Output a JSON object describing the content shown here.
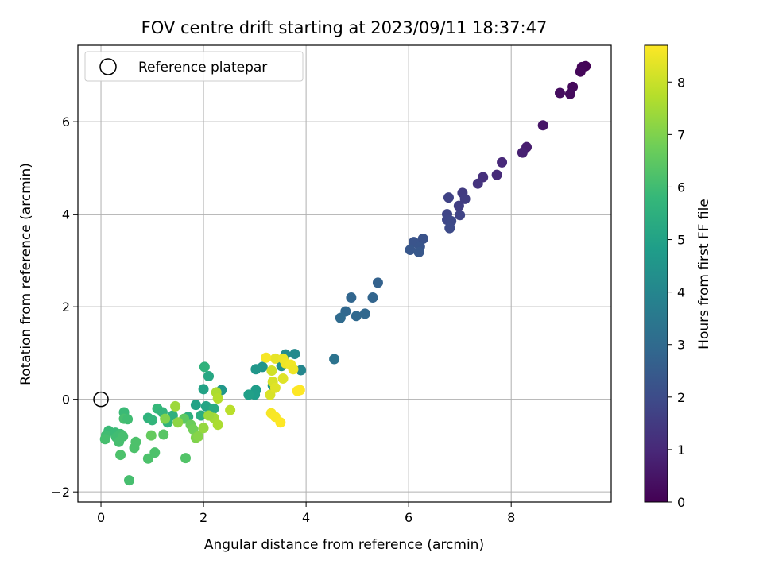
{
  "chart_data": {
    "type": "scatter",
    "title": "FOV centre drift starting at 2023/09/11 18:37:47",
    "xlabel": "Angular distance from reference (arcmin)",
    "ylabel": "Rotation from reference (arcmin)",
    "xlim": [
      -0.45,
      9.95
    ],
    "ylim": [
      -2.22,
      7.65
    ],
    "xticks": [
      0,
      2,
      4,
      6,
      8
    ],
    "xtick_labels": [
      "0",
      "2",
      "4",
      "6",
      "8"
    ],
    "yticks": [
      -2,
      0,
      2,
      4,
      6
    ],
    "ytick_labels": [
      "−2",
      "0",
      "2",
      "4",
      "6"
    ],
    "grid": true,
    "legend": {
      "placement": "top-left",
      "entries": [
        "Reference platepar"
      ]
    },
    "reference_point": {
      "x": 0,
      "y": 0,
      "label": "Reference platepar"
    },
    "colorbar": {
      "label": "Hours from first FF file",
      "range": [
        0,
        8.7
      ],
      "ticks": [
        0,
        1,
        2,
        3,
        4,
        5,
        6,
        7,
        8
      ],
      "tick_labels": [
        "0",
        "1",
        "2",
        "3",
        "4",
        "5",
        "6",
        "7",
        "8"
      ],
      "colormap": "viridis",
      "colors": [
        "#440154",
        "#482878",
        "#3e4a89",
        "#31688e",
        "#26828e",
        "#1f9e89",
        "#35b779",
        "#6ece58",
        "#b5de2b",
        "#fde725"
      ]
    },
    "points": [
      {
        "x": 9.45,
        "y": 7.2,
        "c": 0.05
      },
      {
        "x": 9.38,
        "y": 7.18,
        "c": 0.1
      },
      {
        "x": 9.35,
        "y": 7.08,
        "c": 0.15
      },
      {
        "x": 9.2,
        "y": 6.75,
        "c": 0.2
      },
      {
        "x": 9.15,
        "y": 6.6,
        "c": 0.25
      },
      {
        "x": 8.95,
        "y": 6.62,
        "c": 0.3
      },
      {
        "x": 8.62,
        "y": 5.92,
        "c": 0.5
      },
      {
        "x": 8.3,
        "y": 5.45,
        "c": 0.7
      },
      {
        "x": 8.22,
        "y": 5.33,
        "c": 0.8
      },
      {
        "x": 7.82,
        "y": 5.12,
        "c": 1.0
      },
      {
        "x": 7.72,
        "y": 4.85,
        "c": 1.05
      },
      {
        "x": 7.45,
        "y": 4.8,
        "c": 1.2
      },
      {
        "x": 7.35,
        "y": 4.66,
        "c": 1.3
      },
      {
        "x": 7.05,
        "y": 4.46,
        "c": 1.5
      },
      {
        "x": 7.1,
        "y": 4.33,
        "c": 1.55
      },
      {
        "x": 6.98,
        "y": 4.18,
        "c": 1.6
      },
      {
        "x": 6.78,
        "y": 4.36,
        "c": 1.7
      },
      {
        "x": 7.0,
        "y": 3.98,
        "c": 1.75
      },
      {
        "x": 6.75,
        "y": 4.0,
        "c": 1.8
      },
      {
        "x": 6.75,
        "y": 3.88,
        "c": 1.85
      },
      {
        "x": 6.83,
        "y": 3.85,
        "c": 1.9
      },
      {
        "x": 6.8,
        "y": 3.7,
        "c": 1.95
      },
      {
        "x": 6.28,
        "y": 3.47,
        "c": 2.2
      },
      {
        "x": 6.1,
        "y": 3.4,
        "c": 2.25
      },
      {
        "x": 6.22,
        "y": 3.3,
        "c": 2.3
      },
      {
        "x": 6.03,
        "y": 3.23,
        "c": 2.35
      },
      {
        "x": 6.2,
        "y": 3.18,
        "c": 2.4
      },
      {
        "x": 5.4,
        "y": 2.52,
        "c": 2.7
      },
      {
        "x": 5.3,
        "y": 2.2,
        "c": 2.8
      },
      {
        "x": 4.88,
        "y": 2.2,
        "c": 2.85
      },
      {
        "x": 4.77,
        "y": 1.9,
        "c": 2.9
      },
      {
        "x": 4.98,
        "y": 1.8,
        "c": 2.95
      },
      {
        "x": 5.15,
        "y": 1.85,
        "c": 2.9
      },
      {
        "x": 4.67,
        "y": 1.76,
        "c": 3.0
      },
      {
        "x": 4.55,
        "y": 0.87,
        "c": 3.3
      },
      {
        "x": 3.9,
        "y": 0.63,
        "c": 4.0
      },
      {
        "x": 3.78,
        "y": 0.98,
        "c": 4.1
      },
      {
        "x": 3.6,
        "y": 0.97,
        "c": 4.2
      },
      {
        "x": 3.52,
        "y": 0.72,
        "c": 4.4
      },
      {
        "x": 3.15,
        "y": 0.7,
        "c": 4.5
      },
      {
        "x": 3.02,
        "y": 0.65,
        "c": 4.6
      },
      {
        "x": 3.35,
        "y": 0.3,
        "c": 4.7
      },
      {
        "x": 3.02,
        "y": 0.2,
        "c": 4.8
      },
      {
        "x": 3.0,
        "y": 0.1,
        "c": 4.8
      },
      {
        "x": 2.88,
        "y": 0.1,
        "c": 4.9
      },
      {
        "x": 2.35,
        "y": 0.2,
        "c": 4.6
      },
      {
        "x": 2.02,
        "y": 0.7,
        "c": 5.6
      },
      {
        "x": 2.1,
        "y": 0.5,
        "c": 5.2
      },
      {
        "x": 2.0,
        "y": 0.22,
        "c": 5.0
      },
      {
        "x": 1.85,
        "y": -0.12,
        "c": 5.0
      },
      {
        "x": 2.05,
        "y": -0.15,
        "c": 5.1
      },
      {
        "x": 2.2,
        "y": -0.2,
        "c": 5.3
      },
      {
        "x": 1.95,
        "y": -0.35,
        "c": 5.4
      },
      {
        "x": 1.7,
        "y": -0.38,
        "c": 5.5
      },
      {
        "x": 1.4,
        "y": -0.35,
        "c": 5.5
      },
      {
        "x": 1.3,
        "y": -0.5,
        "c": 5.6
      },
      {
        "x": 1.1,
        "y": -0.2,
        "c": 5.8
      },
      {
        "x": 1.2,
        "y": -0.28,
        "c": 5.7
      },
      {
        "x": 0.92,
        "y": -0.4,
        "c": 5.6
      },
      {
        "x": 1.0,
        "y": -0.45,
        "c": 5.7
      },
      {
        "x": 0.45,
        "y": -0.28,
        "c": 5.9
      },
      {
        "x": 0.45,
        "y": -0.42,
        "c": 6.1
      },
      {
        "x": 0.52,
        "y": -0.43,
        "c": 6.0
      },
      {
        "x": 0.15,
        "y": -0.68,
        "c": 5.9
      },
      {
        "x": 0.1,
        "y": -0.78,
        "c": 6.0
      },
      {
        "x": 0.08,
        "y": -0.86,
        "c": 6.1
      },
      {
        "x": 0.28,
        "y": -0.72,
        "c": 5.9
      },
      {
        "x": 0.3,
        "y": -0.82,
        "c": 6.0
      },
      {
        "x": 0.38,
        "y": -0.75,
        "c": 6.0
      },
      {
        "x": 0.43,
        "y": -0.8,
        "c": 6.1
      },
      {
        "x": 0.35,
        "y": -0.92,
        "c": 6.1
      },
      {
        "x": 0.68,
        "y": -0.92,
        "c": 6.2
      },
      {
        "x": 0.65,
        "y": -1.05,
        "c": 6.2
      },
      {
        "x": 0.38,
        "y": -1.2,
        "c": 6.2
      },
      {
        "x": 1.05,
        "y": -1.15,
        "c": 6.2
      },
      {
        "x": 0.92,
        "y": -1.28,
        "c": 6.2
      },
      {
        "x": 0.55,
        "y": -1.75,
        "c": 6.1
      },
      {
        "x": 1.22,
        "y": -0.76,
        "c": 6.4
      },
      {
        "x": 0.98,
        "y": -0.78,
        "c": 6.6
      },
      {
        "x": 1.65,
        "y": -1.27,
        "c": 6.3
      },
      {
        "x": 1.62,
        "y": -0.42,
        "c": 6.5
      },
      {
        "x": 1.75,
        "y": -0.55,
        "c": 6.7
      },
      {
        "x": 1.8,
        "y": -0.65,
        "c": 6.8
      },
      {
        "x": 1.85,
        "y": -0.83,
        "c": 7.0
      },
      {
        "x": 1.9,
        "y": -0.8,
        "c": 7.1
      },
      {
        "x": 2.0,
        "y": -0.62,
        "c": 7.3
      },
      {
        "x": 2.2,
        "y": -0.4,
        "c": 7.5
      },
      {
        "x": 2.25,
        "y": 0.15,
        "c": 7.6
      },
      {
        "x": 2.28,
        "y": 0.02,
        "c": 7.7
      },
      {
        "x": 2.28,
        "y": -0.55,
        "c": 7.6
      },
      {
        "x": 2.1,
        "y": -0.35,
        "c": 7.4
      },
      {
        "x": 1.5,
        "y": -0.5,
        "c": 7.2
      },
      {
        "x": 1.45,
        "y": -0.15,
        "c": 7.4
      },
      {
        "x": 1.25,
        "y": -0.42,
        "c": 7.0
      },
      {
        "x": 2.52,
        "y": -0.23,
        "c": 7.8
      },
      {
        "x": 3.33,
        "y": 0.62,
        "c": 8.1
      },
      {
        "x": 3.3,
        "y": 0.1,
        "c": 8.2
      },
      {
        "x": 3.35,
        "y": 0.38,
        "c": 8.2
      },
      {
        "x": 3.4,
        "y": 0.25,
        "c": 8.3
      },
      {
        "x": 3.55,
        "y": 0.45,
        "c": 8.3
      },
      {
        "x": 3.4,
        "y": 0.88,
        "c": 8.4
      },
      {
        "x": 3.55,
        "y": 0.88,
        "c": 8.45
      },
      {
        "x": 3.6,
        "y": 0.78,
        "c": 8.5
      },
      {
        "x": 3.7,
        "y": 0.75,
        "c": 8.55
      },
      {
        "x": 3.75,
        "y": 0.65,
        "c": 8.5
      },
      {
        "x": 3.22,
        "y": 0.9,
        "c": 8.6
      },
      {
        "x": 3.32,
        "y": -0.3,
        "c": 8.6
      },
      {
        "x": 3.4,
        "y": -0.38,
        "c": 8.65
      },
      {
        "x": 3.5,
        "y": -0.5,
        "c": 8.7
      },
      {
        "x": 3.83,
        "y": 0.18,
        "c": 8.7
      },
      {
        "x": 3.88,
        "y": 0.2,
        "c": 8.7
      }
    ]
  }
}
